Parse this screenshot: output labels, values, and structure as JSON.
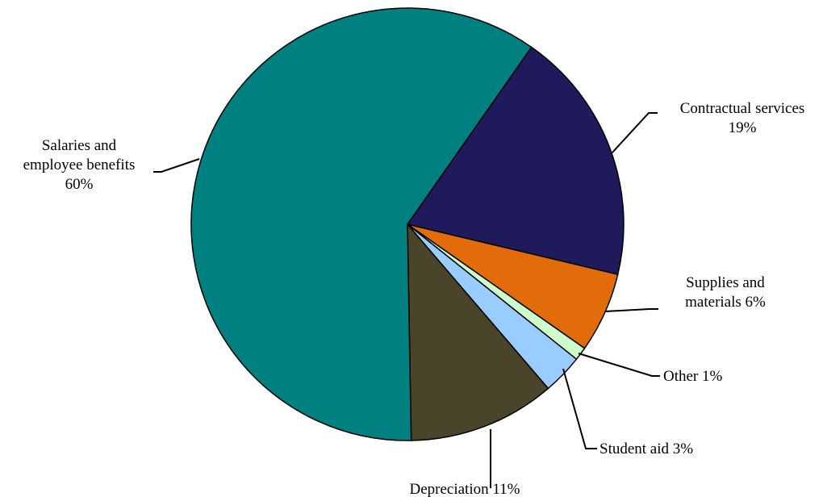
{
  "chart_data": {
    "type": "pie",
    "title": "",
    "slices": [
      {
        "name": "Contractual services",
        "value": 19,
        "label_lines": [
          "Contractual services",
          "19%"
        ],
        "color": "#1f1a5c"
      },
      {
        "name": "Supplies and materials",
        "value": 6,
        "label_lines": [
          "Supplies and",
          "materials 6%"
        ],
        "color": "#e36c0a"
      },
      {
        "name": "Other",
        "value": 1,
        "label_lines": [
          "Other 1%"
        ],
        "color": "#ccffcc"
      },
      {
        "name": "Student aid",
        "value": 3,
        "label_lines": [
          "Student aid 3%"
        ],
        "color": "#99ccff"
      },
      {
        "name": "Depreciation",
        "value": 11,
        "label_lines": [
          "Depreciation 11%"
        ],
        "color": "#4a452a"
      },
      {
        "name": "Salaries and employee benefits",
        "value": 60,
        "label_lines": [
          "Salaries and",
          "employee benefits",
          "60%"
        ],
        "color": "#008080"
      }
    ]
  }
}
